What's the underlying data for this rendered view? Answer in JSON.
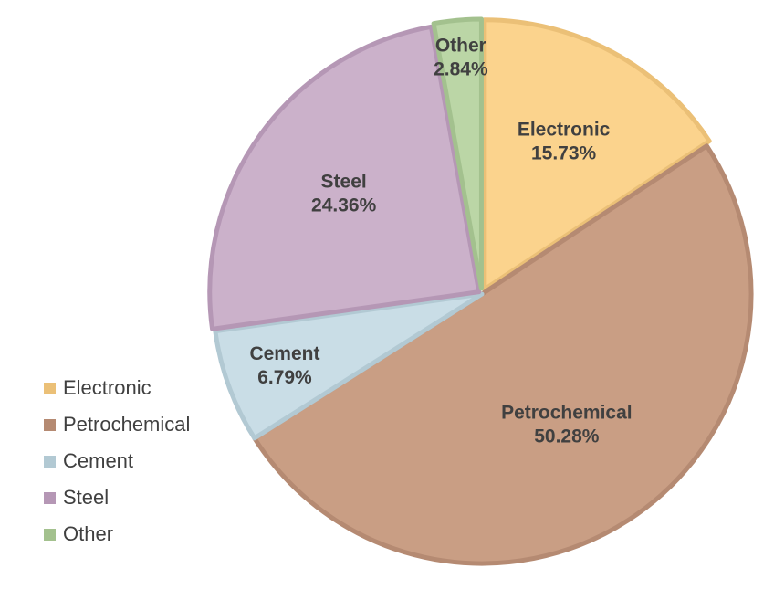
{
  "chart_data": {
    "type": "pie",
    "title": "",
    "legend_position": "bottom-left",
    "slices": [
      {
        "label": "Electronic",
        "value": 15.73,
        "value_label": "15.73%",
        "color": "#FBD38D",
        "border_color": "#EBC077"
      },
      {
        "label": "Petrochemical",
        "value": 50.28,
        "value_label": "50.28%",
        "color": "#C99E84",
        "border_color": "#B58A72"
      },
      {
        "label": "Cement",
        "value": 6.79,
        "value_label": "6.79%",
        "color": "#C9DDE6",
        "border_color": "#B2C9D3"
      },
      {
        "label": "Steel",
        "value": 24.36,
        "value_label": "24.36%",
        "color": "#CBB1CA",
        "border_color": "#B597B5"
      },
      {
        "label": "Other",
        "value": 2.84,
        "value_label": "2.84%",
        "color": "#BBD6A6",
        "border_color": "#A3C18E"
      }
    ]
  }
}
